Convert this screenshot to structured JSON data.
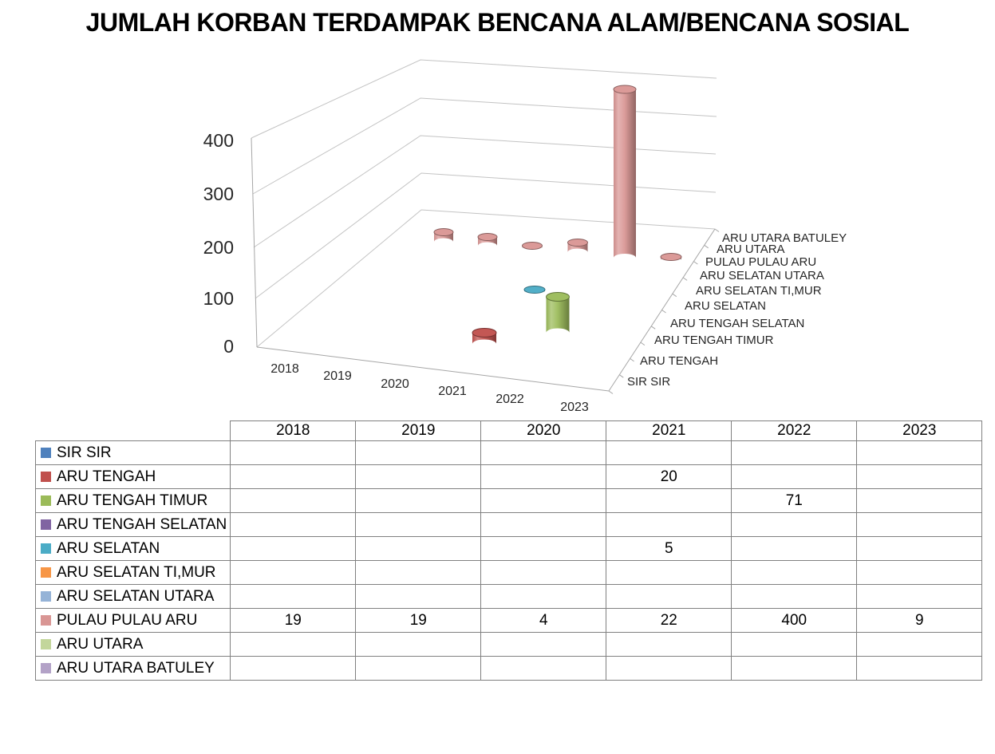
{
  "title": "JUMLAH KORBAN TERDAMPAK BENCANA ALAM/BENCANA SOSIAL",
  "chart_data": {
    "type": "bar",
    "subtype": "3d-cylinder",
    "title": "JUMLAH KORBAN TERDAMPAK BENCANA ALAM/BENCANA SOSIAL",
    "categories": [
      "2018",
      "2019",
      "2020",
      "2021",
      "2022",
      "2023"
    ],
    "series": [
      {
        "name": "SIR SIR",
        "color": "#4F81BD",
        "values": [
          null,
          null,
          null,
          null,
          null,
          null
        ]
      },
      {
        "name": "ARU TENGAH",
        "color": "#C0504D",
        "values": [
          null,
          null,
          null,
          20,
          null,
          null
        ]
      },
      {
        "name": "ARU TENGAH TIMUR",
        "color": "#9BBB59",
        "values": [
          null,
          null,
          null,
          null,
          71,
          null
        ]
      },
      {
        "name": "ARU TENGAH SELATAN",
        "color": "#8064A2",
        "values": [
          null,
          null,
          null,
          null,
          null,
          null
        ]
      },
      {
        "name": "ARU SELATAN",
        "color": "#4BACC6",
        "values": [
          null,
          null,
          null,
          5,
          null,
          null
        ]
      },
      {
        "name": "ARU SELATAN TI,MUR",
        "color": "#F79646",
        "values": [
          null,
          null,
          null,
          null,
          null,
          null
        ]
      },
      {
        "name": "ARU SELATAN UTARA",
        "color": "#95B3D7",
        "values": [
          null,
          null,
          null,
          null,
          null,
          null
        ]
      },
      {
        "name": "PULAU PULAU ARU",
        "color": "#D99694",
        "values": [
          19,
          19,
          4,
          22,
          400,
          9
        ]
      },
      {
        "name": "ARU UTARA",
        "color": "#C3D69B",
        "values": [
          null,
          null,
          null,
          null,
          null,
          null
        ]
      },
      {
        "name": "ARU UTARA BATULEY",
        "color": "#B3A2C7",
        "values": [
          null,
          null,
          null,
          null,
          null,
          null
        ]
      }
    ],
    "xlabel": "",
    "ylabel": "",
    "ylim": [
      0,
      400
    ],
    "yticks": [
      0,
      100,
      200,
      300,
      400
    ],
    "grid": true,
    "legend_position": "table-left"
  }
}
